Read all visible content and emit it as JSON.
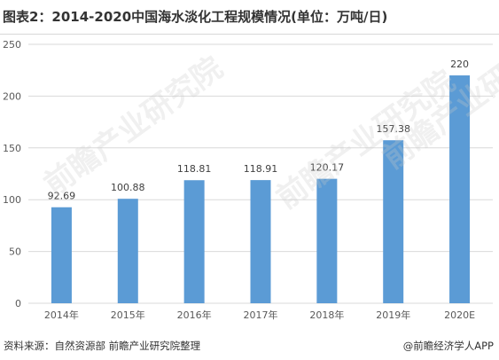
{
  "header": {
    "title": "图表2：2014-2020中国海水淡化工程规模情况(单位：万吨/日)"
  },
  "footer": {
    "source": "资料来源：自然资源部 前瞻产业研究院整理",
    "credit": "@前瞻经济学人APP"
  },
  "watermark": {
    "text": "前瞻产业研究院"
  },
  "colors": {
    "bar": "#5b9bd5",
    "grid": "#d9d9d9",
    "axis_text": "#595959",
    "label_text": "#404040"
  },
  "chart_data": {
    "type": "bar",
    "title": "2014-2020中国海水淡化工程规模情况(单位：万吨/日)",
    "xlabel": "",
    "ylabel": "",
    "categories": [
      "2014年",
      "2015年",
      "2016年",
      "2017年",
      "2018年",
      "2019年",
      "2020E"
    ],
    "values": [
      92.69,
      100.88,
      118.81,
      118.91,
      120.17,
      157.38,
      220
    ],
    "data_labels": [
      "92.69",
      "100.88",
      "118.81",
      "118.91",
      "120.17",
      "157.38",
      "220"
    ],
    "ylim": [
      0,
      250
    ],
    "yticks": [
      0,
      50,
      100,
      150,
      200,
      250
    ],
    "grid": true,
    "legend": "none"
  }
}
